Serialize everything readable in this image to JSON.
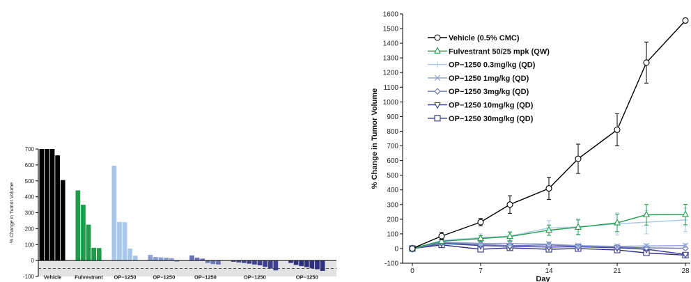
{
  "chart_data": [
    {
      "type": "bar",
      "subtype": "waterfall",
      "ylabel": "% Change in Tumor Volume",
      "ylim": [
        -100,
        700
      ],
      "yticks": [
        -100,
        0,
        100,
        200,
        300,
        400,
        500,
        600,
        700
      ],
      "reference_line": -50,
      "groups": [
        {
          "name": "Vehicle",
          "color": "#000000",
          "values": [
            700,
            700,
            700,
            660,
            505
          ]
        },
        {
          "name": "Fulvestrant",
          "color": "#1f9b4b",
          "values": [
            440,
            350,
            225,
            80,
            78
          ]
        },
        {
          "name": "OP−1250",
          "color": "#a9c7ea",
          "values": [
            595,
            242,
            240,
            75,
            30
          ]
        },
        {
          "name": "OP−1250",
          "color": "#8d9fd4",
          "values": [
            35,
            22,
            20,
            18,
            15,
            -8
          ]
        },
        {
          "name": "OP−1250",
          "color": "#6a73b5",
          "values": [
            32,
            18,
            12,
            -15,
            -22,
            -25
          ]
        },
        {
          "name": "OP−1250",
          "color": "#3d3f92",
          "values": [
            -8,
            -12,
            -15,
            -20,
            -25,
            -30,
            -40,
            -50,
            -62
          ]
        },
        {
          "name": "OP−1250",
          "color": "#2e2f7f",
          "values": [
            -15,
            -28,
            -35,
            -42,
            -48,
            -55,
            -65
          ]
        }
      ]
    },
    {
      "type": "line",
      "xlabel": "Day",
      "ylabel": "% Change in Tumor Volume",
      "xlim": [
        -1,
        28.5
      ],
      "ylim": [
        -100,
        1600
      ],
      "xticks": [
        0,
        7,
        14,
        21,
        28
      ],
      "yticks": [
        -100,
        0,
        100,
        200,
        300,
        400,
        500,
        600,
        700,
        800,
        900,
        1000,
        1100,
        1200,
        1300,
        1400,
        1500,
        1600
      ],
      "legend_position": "top-left",
      "series": [
        {
          "name": "Vehicle (0.5% CMC)",
          "color": "#000000",
          "marker": "circle",
          "x": [
            0,
            3,
            7,
            10,
            14,
            17,
            21,
            24,
            28
          ],
          "y": [
            0,
            85,
            180,
            300,
            410,
            612,
            810,
            1268,
            1555
          ],
          "err": [
            5,
            25,
            25,
            60,
            75,
            100,
            110,
            140,
            15
          ]
        },
        {
          "name": "Fulvestrant 50/25 mpk (QW)",
          "color": "#1f9b4b",
          "marker": "triangle-up",
          "x": [
            0,
            3,
            7,
            10,
            14,
            17,
            21,
            24,
            28
          ],
          "y": [
            0,
            50,
            68,
            82,
            125,
            145,
            175,
            230,
            232
          ],
          "err": [
            3,
            15,
            20,
            30,
            35,
            50,
            60,
            70,
            70
          ]
        },
        {
          "name": "OP−1250 0.3mg/kg (QD)",
          "color": "#a9c7ea",
          "marker": "plus",
          "x": [
            0,
            3,
            7,
            10,
            14,
            17,
            21,
            24,
            28
          ],
          "y": [
            0,
            55,
            75,
            85,
            140,
            148,
            168,
            180,
            195
          ],
          "err": [
            3,
            15,
            25,
            30,
            50,
            55,
            75,
            80,
            80
          ]
        },
        {
          "name": "OP−1250 1mg/kg  (QD)",
          "color": "#8d9fd4",
          "marker": "cross",
          "x": [
            0,
            3,
            7,
            10,
            14,
            17,
            21,
            24,
            28
          ],
          "y": [
            0,
            45,
            35,
            35,
            30,
            20,
            15,
            18,
            20
          ],
          "err": [
            3,
            12,
            15,
            15,
            15,
            12,
            12,
            12,
            12
          ]
        },
        {
          "name": "OP−1250 3mg/kg  (QD)",
          "color": "#6a73b5",
          "marker": "diamond",
          "x": [
            0,
            3,
            7,
            10,
            14,
            17,
            21,
            24,
            28
          ],
          "y": [
            0,
            40,
            28,
            20,
            25,
            15,
            10,
            5,
            2
          ],
          "err": [
            3,
            12,
            12,
            12,
            12,
            10,
            10,
            10,
            10
          ]
        },
        {
          "name": "OP−1250 10mg/kg  (QD)",
          "color": "#3d3f92",
          "marker": "triangle-down",
          "x": [
            0,
            3,
            7,
            10,
            14,
            17,
            21,
            24,
            28
          ],
          "y": [
            0,
            35,
            20,
            15,
            10,
            12,
            5,
            -5,
            -40
          ],
          "err": [
            3,
            10,
            10,
            10,
            10,
            10,
            10,
            10,
            10
          ]
        },
        {
          "name": "OP−1250 30mg/kg  (QD)",
          "color": "#2e2f7f",
          "marker": "square",
          "x": [
            0,
            3,
            7,
            10,
            14,
            17,
            21,
            24,
            28
          ],
          "y": [
            0,
            25,
            -5,
            5,
            -5,
            0,
            -10,
            -30,
            -45
          ],
          "err": [
            3,
            10,
            10,
            10,
            10,
            10,
            10,
            10,
            10
          ]
        }
      ]
    }
  ]
}
